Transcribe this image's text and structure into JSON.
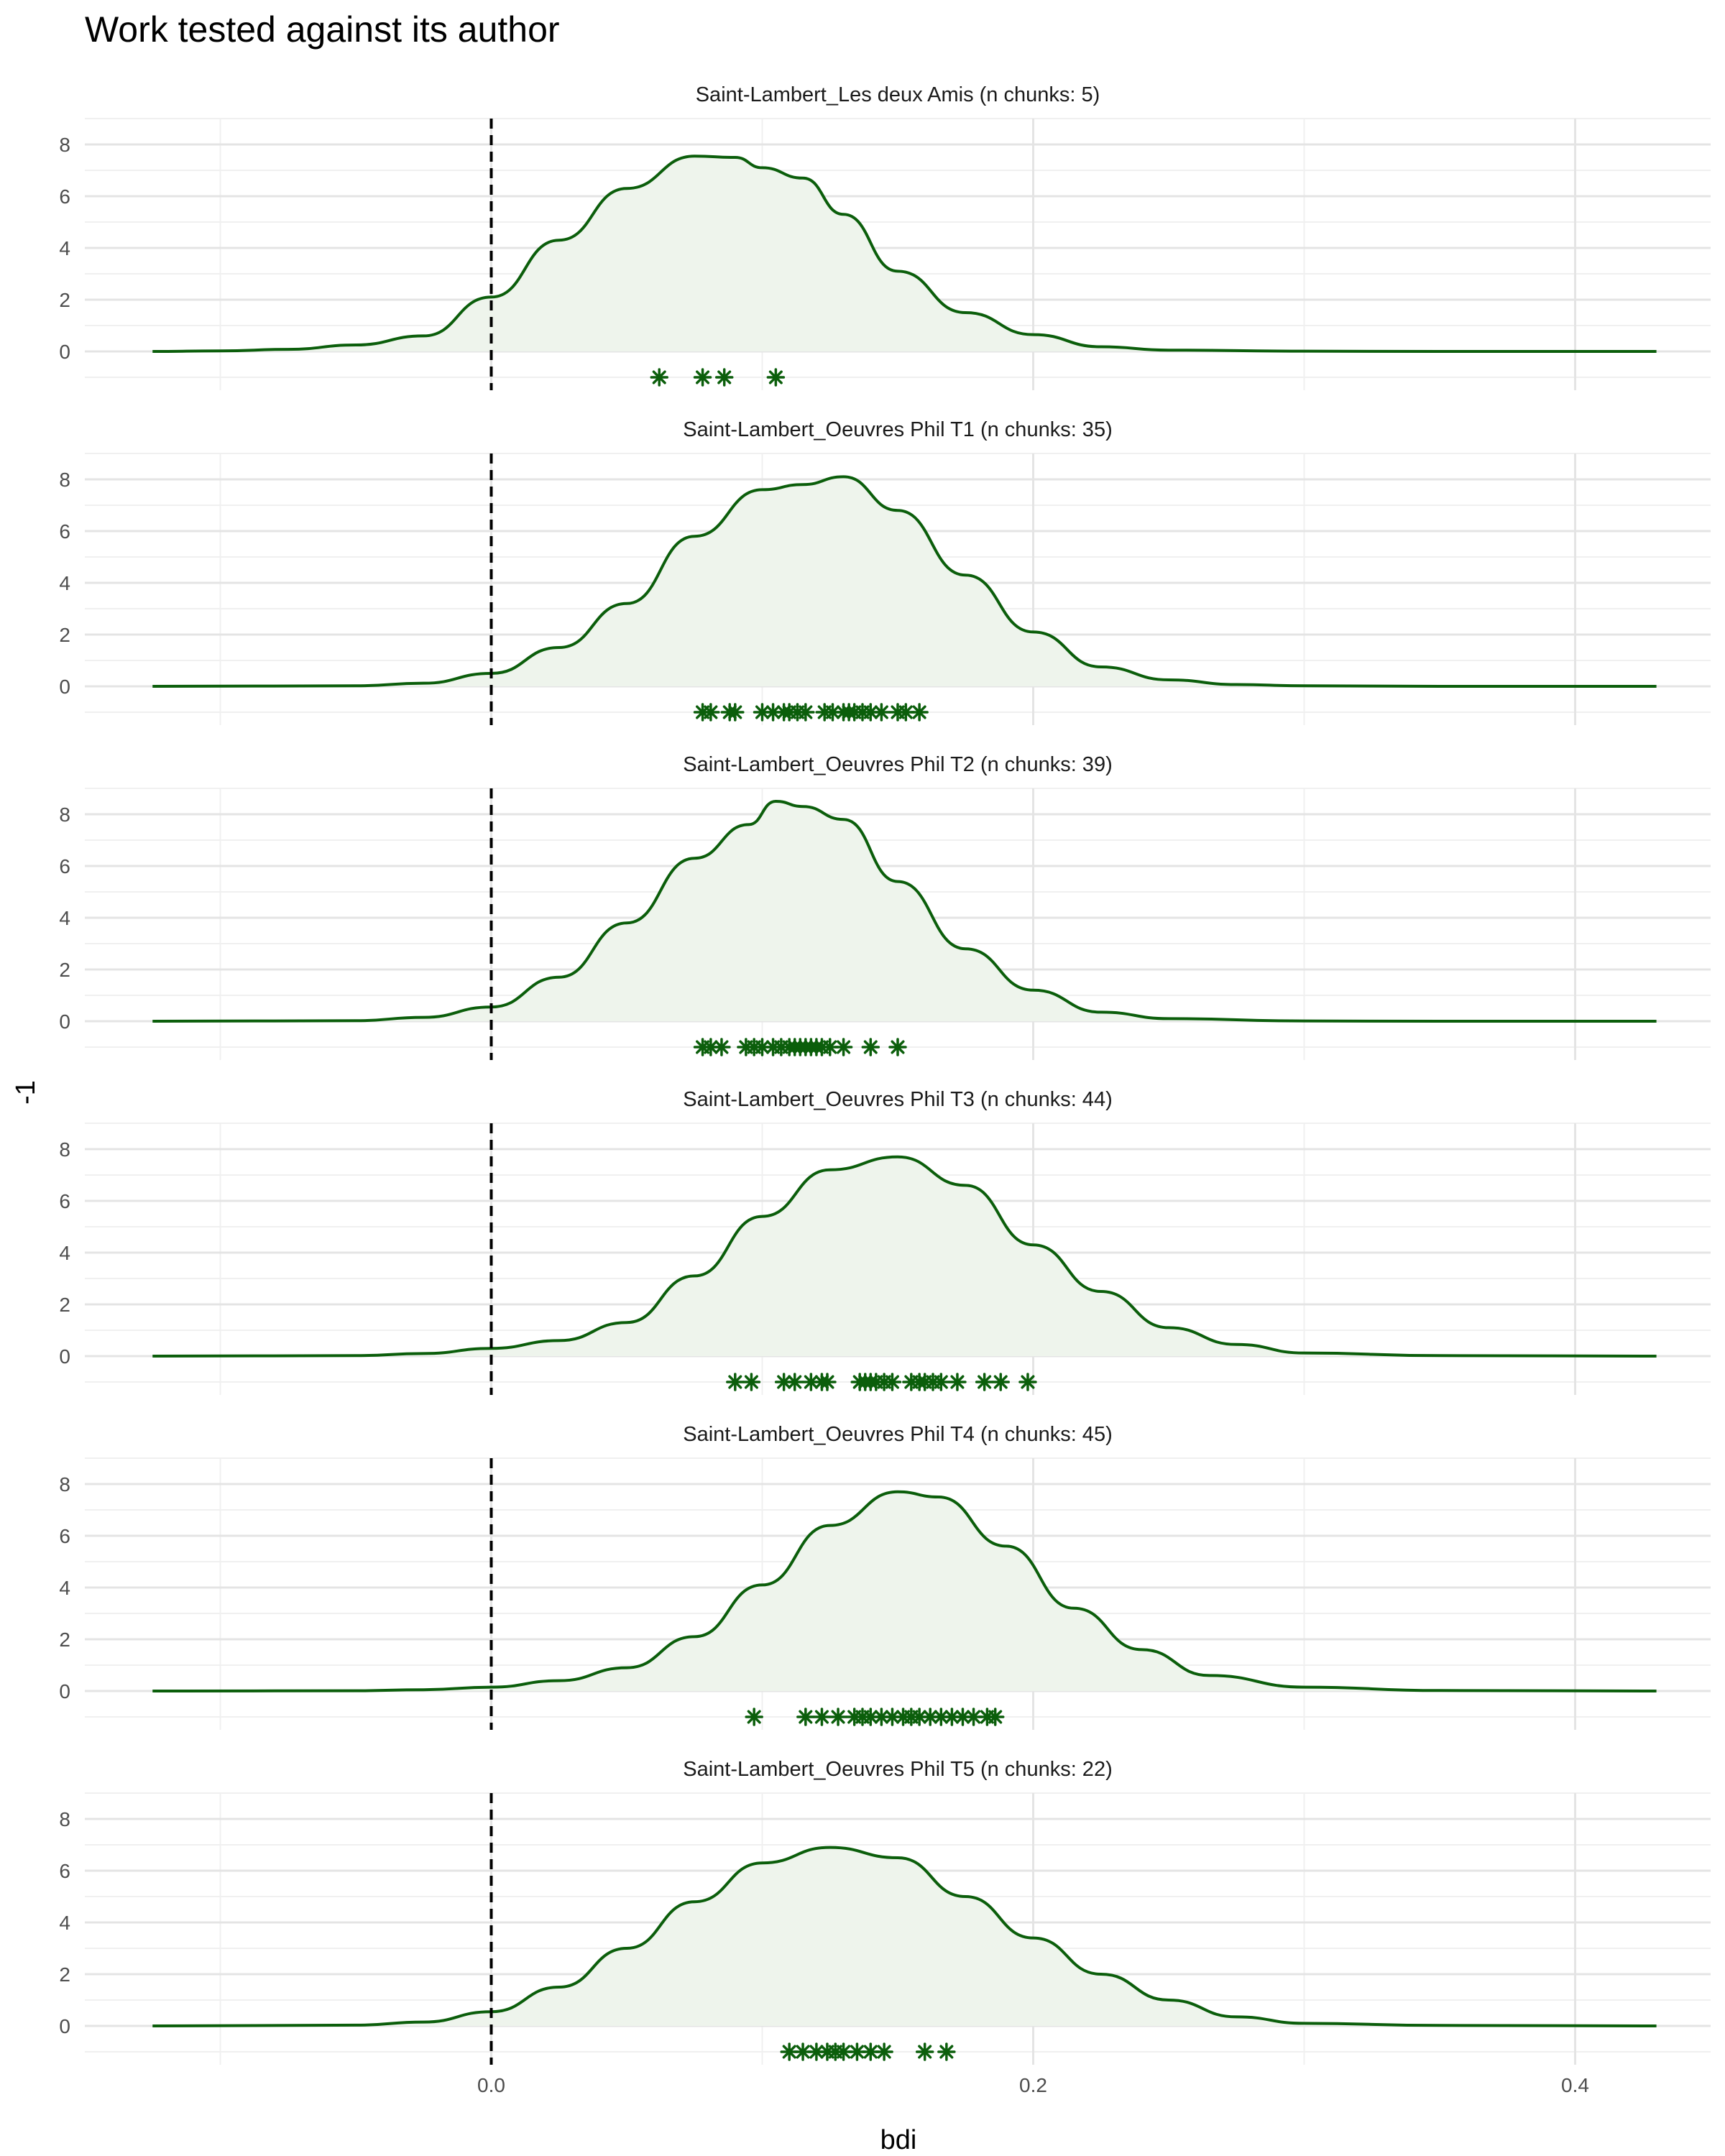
{
  "chart_data": {
    "type": "area",
    "title": "Work tested against its author",
    "xlabel": "bdi",
    "ylabel": "-1",
    "xlim": [
      -0.15,
      0.45
    ],
    "ylim": [
      -1.5,
      9
    ],
    "x_ticks": [
      0.0,
      0.2,
      0.4
    ],
    "y_ticks": [
      0,
      2,
      4,
      6,
      8
    ],
    "reference_line_x": 0.0,
    "grid": true,
    "colors": {
      "line": "#0b5e0b",
      "fill": "#eef4ec",
      "marker": "#0b5e0b",
      "reference_line": "#000000"
    },
    "panels": [
      {
        "label": "Saint-Lambert_Les deux Amis (n chunks: 5)",
        "density": [
          [
            -0.125,
            0
          ],
          [
            -0.1,
            0.02
          ],
          [
            -0.075,
            0.08
          ],
          [
            -0.05,
            0.25
          ],
          [
            -0.025,
            0.6
          ],
          [
            0,
            2.1
          ],
          [
            0.025,
            4.3
          ],
          [
            0.05,
            6.3
          ],
          [
            0.075,
            7.55
          ],
          [
            0.09,
            7.5
          ],
          [
            0.1,
            7.1
          ],
          [
            0.115,
            6.7
          ],
          [
            0.13,
            5.3
          ],
          [
            0.15,
            3.1
          ],
          [
            0.175,
            1.5
          ],
          [
            0.2,
            0.65
          ],
          [
            0.225,
            0.18
          ],
          [
            0.25,
            0.05
          ],
          [
            0.3,
            0.01
          ],
          [
            0.35,
            0
          ],
          [
            0.43,
            0
          ]
        ],
        "points": [
          0.062,
          0.078,
          0.086,
          0.105
        ]
      },
      {
        "label": "Saint-Lambert_Oeuvres Phil T1 (n chunks: 35)",
        "density": [
          [
            -0.125,
            0
          ],
          [
            -0.05,
            0.02
          ],
          [
            -0.025,
            0.12
          ],
          [
            0,
            0.5
          ],
          [
            0.025,
            1.5
          ],
          [
            0.05,
            3.2
          ],
          [
            0.075,
            5.8
          ],
          [
            0.1,
            7.6
          ],
          [
            0.115,
            7.8
          ],
          [
            0.13,
            8.1
          ],
          [
            0.15,
            6.8
          ],
          [
            0.175,
            4.3
          ],
          [
            0.2,
            2.1
          ],
          [
            0.225,
            0.75
          ],
          [
            0.25,
            0.25
          ],
          [
            0.275,
            0.07
          ],
          [
            0.3,
            0.02
          ],
          [
            0.35,
            0
          ],
          [
            0.43,
            0
          ]
        ],
        "points": [
          0.078,
          0.081,
          0.088,
          0.09,
          0.1,
          0.104,
          0.108,
          0.11,
          0.113,
          0.116,
          0.123,
          0.126,
          0.13,
          0.132,
          0.134,
          0.137,
          0.14,
          0.144,
          0.15,
          0.153,
          0.158
        ]
      },
      {
        "label": "Saint-Lambert_Oeuvres Phil T2 (n chunks: 39)",
        "density": [
          [
            -0.125,
            0
          ],
          [
            -0.05,
            0.02
          ],
          [
            -0.025,
            0.15
          ],
          [
            0,
            0.55
          ],
          [
            0.025,
            1.7
          ],
          [
            0.05,
            3.8
          ],
          [
            0.075,
            6.3
          ],
          [
            0.095,
            7.6
          ],
          [
            0.105,
            8.5
          ],
          [
            0.115,
            8.3
          ],
          [
            0.13,
            7.8
          ],
          [
            0.15,
            5.4
          ],
          [
            0.175,
            2.8
          ],
          [
            0.2,
            1.2
          ],
          [
            0.225,
            0.35
          ],
          [
            0.25,
            0.1
          ],
          [
            0.3,
            0.01
          ],
          [
            0.35,
            0
          ],
          [
            0.43,
            0
          ]
        ],
        "points": [
          0.078,
          0.081,
          0.085,
          0.094,
          0.097,
          0.1,
          0.104,
          0.107,
          0.11,
          0.112,
          0.114,
          0.116,
          0.118,
          0.12,
          0.122,
          0.125,
          0.13,
          0.14,
          0.15
        ]
      },
      {
        "label": "Saint-Lambert_Oeuvres Phil T3 (n chunks: 44)",
        "density": [
          [
            -0.125,
            0
          ],
          [
            -0.05,
            0.02
          ],
          [
            -0.025,
            0.1
          ],
          [
            0,
            0.3
          ],
          [
            0.025,
            0.6
          ],
          [
            0.05,
            1.3
          ],
          [
            0.075,
            3.1
          ],
          [
            0.1,
            5.4
          ],
          [
            0.125,
            7.2
          ],
          [
            0.15,
            7.7
          ],
          [
            0.175,
            6.6
          ],
          [
            0.2,
            4.3
          ],
          [
            0.225,
            2.5
          ],
          [
            0.25,
            1.1
          ],
          [
            0.275,
            0.45
          ],
          [
            0.3,
            0.12
          ],
          [
            0.35,
            0.02
          ],
          [
            0.43,
            0
          ]
        ],
        "points": [
          0.09,
          0.096,
          0.108,
          0.112,
          0.118,
          0.122,
          0.124,
          0.136,
          0.138,
          0.14,
          0.142,
          0.145,
          0.148,
          0.155,
          0.158,
          0.16,
          0.163,
          0.166,
          0.172,
          0.182,
          0.188,
          0.198
        ]
      },
      {
        "label": "Saint-Lambert_Oeuvres Phil T4 (n chunks: 45)",
        "density": [
          [
            -0.125,
            0
          ],
          [
            -0.05,
            0.01
          ],
          [
            -0.025,
            0.05
          ],
          [
            0,
            0.15
          ],
          [
            0.025,
            0.4
          ],
          [
            0.05,
            0.9
          ],
          [
            0.075,
            2.1
          ],
          [
            0.1,
            4.1
          ],
          [
            0.125,
            6.4
          ],
          [
            0.15,
            7.7
          ],
          [
            0.165,
            7.5
          ],
          [
            0.19,
            5.6
          ],
          [
            0.215,
            3.2
          ],
          [
            0.24,
            1.6
          ],
          [
            0.265,
            0.6
          ],
          [
            0.3,
            0.15
          ],
          [
            0.35,
            0.02
          ],
          [
            0.43,
            0
          ]
        ],
        "points": [
          0.097,
          0.116,
          0.122,
          0.128,
          0.134,
          0.137,
          0.14,
          0.144,
          0.148,
          0.152,
          0.155,
          0.158,
          0.162,
          0.166,
          0.17,
          0.174,
          0.178,
          0.183,
          0.186
        ]
      },
      {
        "label": "Saint-Lambert_Oeuvres Phil T5 (n chunks: 22)",
        "density": [
          [
            -0.125,
            0
          ],
          [
            -0.05,
            0.03
          ],
          [
            -0.025,
            0.15
          ],
          [
            0,
            0.55
          ],
          [
            0.025,
            1.5
          ],
          [
            0.05,
            3.0
          ],
          [
            0.075,
            4.8
          ],
          [
            0.1,
            6.3
          ],
          [
            0.125,
            6.9
          ],
          [
            0.15,
            6.5
          ],
          [
            0.175,
            5.0
          ],
          [
            0.2,
            3.4
          ],
          [
            0.225,
            2.0
          ],
          [
            0.25,
            1.0
          ],
          [
            0.275,
            0.35
          ],
          [
            0.3,
            0.1
          ],
          [
            0.35,
            0.02
          ],
          [
            0.43,
            0
          ]
        ],
        "points": [
          0.11,
          0.115,
          0.12,
          0.124,
          0.127,
          0.13,
          0.135,
          0.14,
          0.145,
          0.16,
          0.168
        ]
      }
    ]
  }
}
